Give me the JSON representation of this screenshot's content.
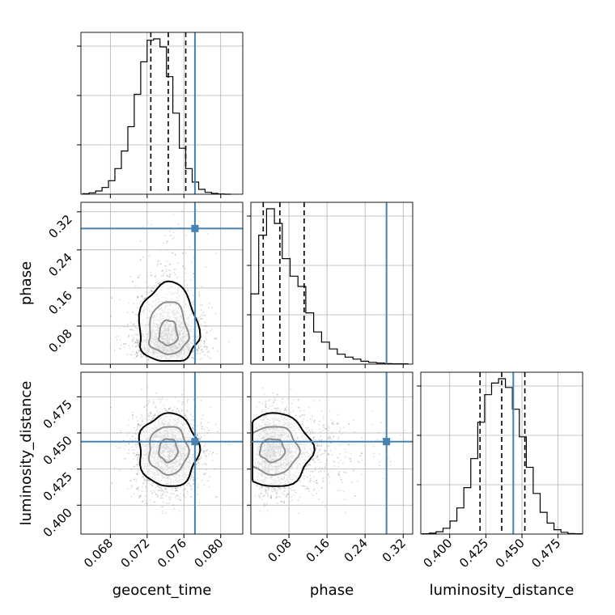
{
  "chart_data": {
    "type": "corner",
    "parameters": [
      {
        "key": "geocent_time",
        "label": "geocent_time",
        "range": [
          0.0648,
          0.0824
        ],
        "ticks": [
          {
            "v": 0.068,
            "t": "0.068"
          },
          {
            "v": 0.072,
            "t": "0.072"
          },
          {
            "v": 0.076,
            "t": "0.076"
          },
          {
            "v": 0.08,
            "t": "0.080"
          }
        ]
      },
      {
        "key": "phase",
        "label": "phase",
        "range": [
          0.0,
          0.34
        ],
        "ticks": [
          {
            "v": 0.08,
            "t": "0.08"
          },
          {
            "v": 0.16,
            "t": "0.16"
          },
          {
            "v": 0.24,
            "t": "0.24"
          },
          {
            "v": 0.32,
            "t": "0.32"
          }
        ]
      },
      {
        "key": "luminosity_distance",
        "label": "luminosity_distance",
        "range": [
          0.38,
          0.492
        ],
        "ticks": [
          {
            "v": 0.4,
            "t": "0.400"
          },
          {
            "v": 0.425,
            "t": "0.425"
          },
          {
            "v": 0.45,
            "t": "0.450"
          },
          {
            "v": 0.475,
            "t": "0.475"
          }
        ]
      }
    ],
    "truths": {
      "geocent_time": 0.0772,
      "phase": 0.285,
      "luminosity_distance": 0.444
    },
    "quantiles": {
      "geocent_time": [
        0.0724,
        0.0743,
        0.0762
      ],
      "phase": [
        0.026,
        0.061,
        0.112
      ],
      "luminosity_distance": [
        0.421,
        0.436,
        0.452
      ]
    },
    "histograms": {
      "geocent_time": {
        "edges": [
          0.065,
          0.0657,
          0.0664,
          0.0671,
          0.0678,
          0.0685,
          0.0692,
          0.0699,
          0.0706,
          0.0713,
          0.072,
          0.0727,
          0.0734,
          0.0741,
          0.0748,
          0.0755,
          0.0762,
          0.0769,
          0.0776,
          0.0783,
          0.079,
          0.0797,
          0.0804,
          0.0811
        ],
        "counts": [
          2,
          5,
          12,
          25,
          50,
          95,
          160,
          250,
          370,
          490,
          570,
          575,
          545,
          435,
          300,
          170,
          95,
          45,
          18,
          7,
          3,
          1,
          0
        ]
      },
      "phase": {
        "edges": [
          0.0,
          0.0165,
          0.033,
          0.0495,
          0.066,
          0.0825,
          0.099,
          0.1155,
          0.132,
          0.1485,
          0.165,
          0.1815,
          0.198,
          0.2145,
          0.231,
          0.2475,
          0.264,
          0.2805,
          0.297,
          0.3135,
          0.33
        ],
        "counts": [
          240,
          440,
          530,
          480,
          360,
          300,
          265,
          175,
          110,
          75,
          52,
          34,
          24,
          17,
          10,
          6,
          4,
          2,
          1,
          1
        ]
      },
      "luminosity_distance": {
        "edges": [
          0.381,
          0.3858,
          0.3906,
          0.3954,
          0.4002,
          0.405,
          0.4098,
          0.4146,
          0.4194,
          0.4242,
          0.429,
          0.4338,
          0.4386,
          0.4434,
          0.4482,
          0.453,
          0.4578,
          0.4626,
          0.4674,
          0.4722,
          0.477,
          0.4818,
          0.4866,
          0.4914
        ],
        "counts": [
          1,
          3,
          8,
          20,
          45,
          90,
          160,
          260,
          385,
          480,
          520,
          535,
          505,
          430,
          335,
          230,
          140,
          75,
          38,
          15,
          6,
          2,
          1
        ]
      }
    },
    "density_peaks": {
      "phase_vs_geocent_time": {
        "x": 0.0743,
        "y": 0.057
      },
      "luminosity_distance_vs_geocent_time": {
        "x": 0.0743,
        "y": 0.438
      },
      "luminosity_distance_vs_phase": {
        "x": 0.045,
        "y": 0.438
      }
    },
    "grid": true,
    "colors": {
      "truth": "#4682b4",
      "hist": "#000000",
      "quantile": "#000000",
      "points": "#9a9a9a",
      "density": "#000000",
      "grid": "#b0b0b0"
    }
  }
}
